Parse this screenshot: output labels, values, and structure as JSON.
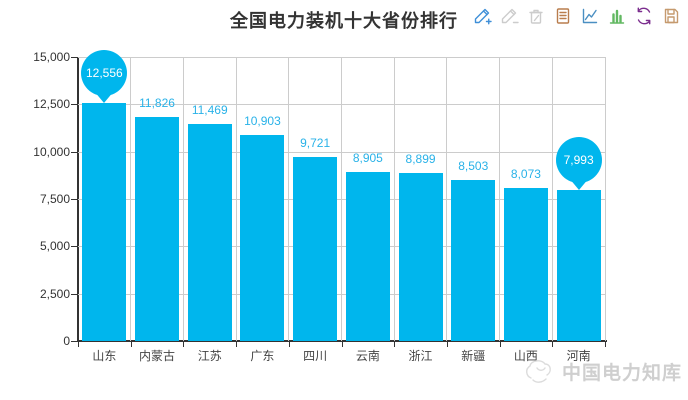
{
  "header": {
    "title": "全国电力装机十大省份排行",
    "toolbar": [
      {
        "id": "edit-add-icon",
        "color": "#3f8fd8",
        "enabled": true
      },
      {
        "id": "edit-remove-icon",
        "color": "#cccccc",
        "enabled": false
      },
      {
        "id": "delete-icon",
        "color": "#cccccc",
        "enabled": false
      },
      {
        "id": "data-view-icon",
        "color": "#b97d4d",
        "enabled": true
      },
      {
        "id": "line-chart-icon",
        "color": "#4a8fc2",
        "enabled": true
      },
      {
        "id": "bar-chart-icon",
        "color": "#62b862",
        "enabled": true
      },
      {
        "id": "restore-icon",
        "color": "#7b2d8e",
        "enabled": true
      },
      {
        "id": "save-image-icon",
        "color": "#c59a6e",
        "enabled": true
      }
    ]
  },
  "chart_data": {
    "type": "bar",
    "title": "全国电力装机十大省份排行",
    "categories": [
      "山东",
      "内蒙古",
      "江苏",
      "广东",
      "四川",
      "云南",
      "浙江",
      "新疆",
      "山西",
      "河南"
    ],
    "values": [
      12556,
      11826,
      11469,
      10903,
      9721,
      8905,
      8899,
      8503,
      8073,
      7993
    ],
    "value_labels": [
      "12,556",
      "11,826",
      "11,469",
      "10,903",
      "9,721",
      "8,905",
      "8,899",
      "8,503",
      "8,073",
      "7,993"
    ],
    "ylim": [
      0,
      15000
    ],
    "ytick_values": [
      0,
      2500,
      5000,
      7500,
      10000,
      12500,
      15000
    ],
    "ytick_labels": [
      "0",
      "2,500",
      "5,000",
      "7,500",
      "10,000",
      "12,500",
      "15,000"
    ],
    "xlabel": "",
    "ylabel": "",
    "grid": true,
    "legend_position": "none",
    "bar_color": "#00b6ed",
    "label_color": "#29b2e8",
    "mark_points": [
      {
        "type": "max",
        "category": "山东",
        "index": 0,
        "label": "12,556"
      },
      {
        "type": "min",
        "category": "河南",
        "index": 9,
        "label": "7,993"
      }
    ]
  },
  "watermark": {
    "text": "中国电力知库"
  }
}
